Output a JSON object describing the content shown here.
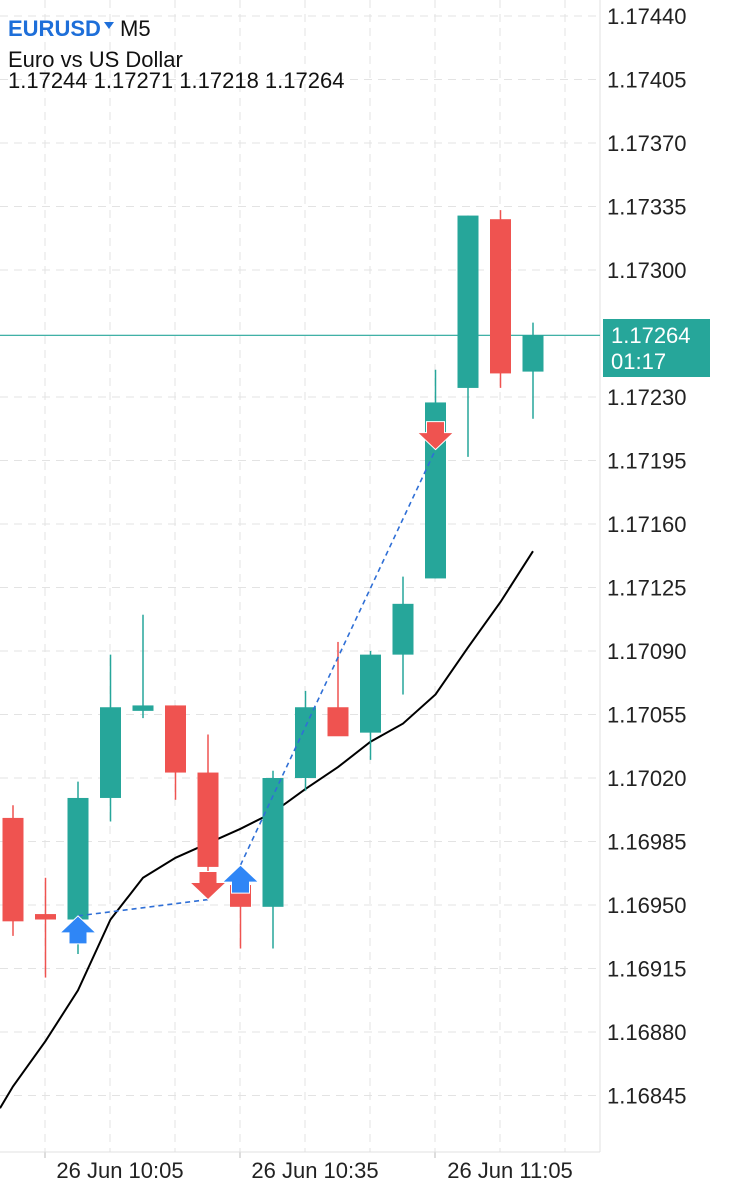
{
  "header": {
    "symbol": "EURUSD",
    "timeframe": "M5",
    "description": "Euro vs US Dollar",
    "ohlc": "1.17244 1.17271 1.17218 1.17264"
  },
  "current_price": {
    "price": "1.17264",
    "countdown": "01:17"
  },
  "colors": {
    "bull": "#26a69a",
    "bear": "#ef5350",
    "ma": "#000000",
    "buy_arrow": "#2f86f6",
    "sell_arrow": "#ef5350",
    "trade_line": "#2f6fd6",
    "price_line": "#26a69a"
  },
  "chart_data": {
    "type": "candlestick",
    "title": "",
    "xlabel": "",
    "ylabel": "",
    "ylim": [
      1.1681,
      1.17455
    ],
    "y_ticks": [
      "1.17440",
      "1.17405",
      "1.17370",
      "1.17335",
      "1.17300",
      "1.17230",
      "1.17195",
      "1.17160",
      "1.17125",
      "1.17090",
      "1.17055",
      "1.17020",
      "1.16985",
      "1.16950",
      "1.16915",
      "1.16880",
      "1.16845"
    ],
    "x_ticks": [
      "26 Jun 10:05",
      "26 Jun 10:35",
      "26 Jun 11:05"
    ],
    "grid": true,
    "candles": [
      {
        "o": 1.16998,
        "h": 1.17005,
        "l": 1.16933,
        "c": 1.16941
      },
      {
        "o": 1.16945,
        "h": 1.16965,
        "l": 1.1691,
        "c": 1.16942
      },
      {
        "o": 1.16942,
        "h": 1.17018,
        "l": 1.16923,
        "c": 1.17009
      },
      {
        "o": 1.17009,
        "h": 1.17088,
        "l": 1.16996,
        "c": 1.17059
      },
      {
        "o": 1.17057,
        "h": 1.1711,
        "l": 1.17053,
        "c": 1.1706
      },
      {
        "o": 1.1706,
        "h": 1.1706,
        "l": 1.17008,
        "c": 1.17023
      },
      {
        "o": 1.17023,
        "h": 1.17044,
        "l": 1.16962,
        "c": 1.16971
      },
      {
        "o": 1.16961,
        "h": 1.16972,
        "l": 1.16926,
        "c": 1.16949
      },
      {
        "o": 1.16949,
        "h": 1.17024,
        "l": 1.16926,
        "c": 1.1702
      },
      {
        "o": 1.1702,
        "h": 1.17068,
        "l": 1.17013,
        "c": 1.17059
      },
      {
        "o": 1.17059,
        "h": 1.17095,
        "l": 1.17046,
        "c": 1.17043
      },
      {
        "o": 1.17045,
        "h": 1.1709,
        "l": 1.1703,
        "c": 1.17088
      },
      {
        "o": 1.17088,
        "h": 1.17131,
        "l": 1.17066,
        "c": 1.17116
      },
      {
        "o": 1.1713,
        "h": 1.17245,
        "l": 1.1713,
        "c": 1.17227
      },
      {
        "o": 1.17235,
        "h": 1.1733,
        "l": 1.17197,
        "c": 1.1733
      },
      {
        "o": 1.17328,
        "h": 1.17333,
        "l": 1.17235,
        "c": 1.17243
      },
      {
        "o": 1.17244,
        "h": 1.17271,
        "l": 1.17218,
        "c": 1.17264
      }
    ],
    "moving_average": [
      1.1685,
      1.16875,
      1.16903,
      1.16942,
      1.16965,
      1.16976,
      1.16984,
      1.16992,
      1.17001,
      1.17014,
      1.17026,
      1.1704,
      1.1705,
      1.17066,
      1.17092,
      1.17117,
      1.17145
    ],
    "current_price": 1.17264,
    "trades": [
      {
        "side": "buy",
        "open_index": 2,
        "open_price": 1.16944,
        "close_index": 6,
        "close_price": 1.16953
      },
      {
        "side": "buy",
        "open_index": 7,
        "open_price": 1.16972,
        "close_index": 13,
        "close_price": 1.17201
      }
    ]
  }
}
